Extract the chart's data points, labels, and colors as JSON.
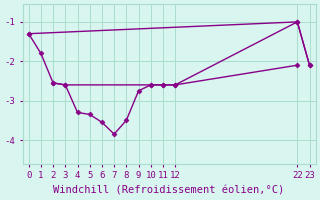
{
  "background_color": "#d8f5f0",
  "grid_color": "#aaddcc",
  "line_color": "#880088",
  "marker": "D",
  "markersize": 2.5,
  "linewidth": 1.0,
  "xlim": [
    -0.5,
    23.5
  ],
  "ylim": [
    -4.6,
    -0.55
  ],
  "yticks": [
    -4,
    -3,
    -2,
    -1
  ],
  "xtick_pos": [
    0,
    1,
    2,
    3,
    4,
    5,
    6,
    7,
    8,
    9,
    10,
    11,
    12,
    22,
    23
  ],
  "xtick_labels": [
    "0",
    "1",
    "2",
    "3",
    "4",
    "5",
    "6",
    "7",
    "8",
    "9",
    "10",
    "11",
    "12",
    "22",
    "23"
  ],
  "xlabel": "Windchill (Refroidissement éolien,°C)",
  "font_color": "#880088",
  "tick_fontsize": 6.5,
  "label_fontsize": 7.5,
  "line1_x": [
    0,
    1,
    2,
    3,
    4,
    5,
    6,
    7,
    8,
    9,
    10,
    11,
    12,
    22,
    23
  ],
  "line1_y": [
    -1.3,
    -1.8,
    -2.55,
    -2.6,
    -3.3,
    -3.35,
    -3.55,
    -3.85,
    -3.5,
    -2.75,
    -2.6,
    -2.6,
    -2.6,
    -1.0,
    -2.1
  ],
  "line2_x": [
    0,
    22,
    23
  ],
  "line2_y": [
    -1.3,
    -1.0,
    -2.1
  ],
  "line3_x": [
    2,
    3,
    10,
    11,
    12,
    22
  ],
  "line3_y": [
    -2.55,
    -2.6,
    -2.6,
    -2.6,
    -2.6,
    -2.1
  ]
}
